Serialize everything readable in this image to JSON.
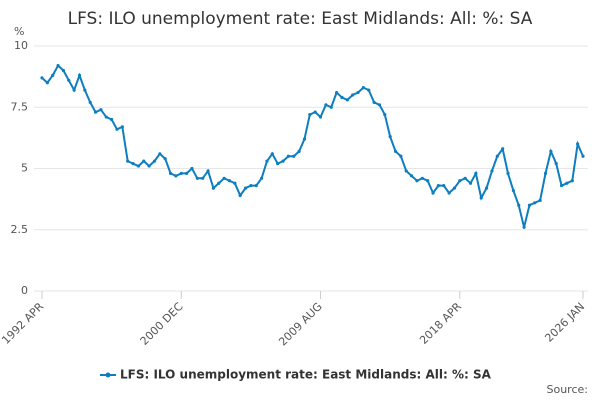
{
  "chart_data": {
    "type": "line",
    "title": "LFS: ILO unemployment rate: East Midlands: All: %: SA",
    "y_label": "%",
    "source": "Source:",
    "categories": [
      "1992 APR",
      null,
      null,
      null,
      null,
      null,
      null,
      null,
      null,
      null,
      null,
      null,
      null,
      null,
      null,
      null,
      null,
      null,
      null,
      null,
      null,
      null,
      null,
      null,
      null,
      null,
      "2000 DEC",
      null,
      null,
      null,
      null,
      null,
      null,
      null,
      null,
      null,
      null,
      null,
      null,
      null,
      null,
      null,
      null,
      null,
      null,
      null,
      null,
      null,
      null,
      null,
      null,
      null,
      "2009 AUG",
      null,
      null,
      null,
      null,
      null,
      null,
      null,
      null,
      null,
      null,
      null,
      null,
      null,
      null,
      null,
      null,
      null,
      null,
      null,
      null,
      null,
      null,
      null,
      null,
      null,
      "2018 APR",
      null,
      null,
      null,
      null,
      null,
      null,
      null,
      null,
      null,
      null,
      null,
      null,
      null,
      null,
      null,
      null,
      null,
      null,
      null,
      null,
      null,
      null,
      "2026 JAN"
    ],
    "series": [
      {
        "name": "LFS: ILO unemployment rate: East Midlands: All: %: SA",
        "color": "#0e7ec0",
        "values": [
          8.7,
          8.5,
          8.8,
          9.2,
          9.0,
          8.6,
          8.2,
          8.8,
          8.2,
          7.7,
          7.3,
          7.4,
          7.1,
          7.0,
          6.6,
          6.7,
          5.3,
          5.2,
          5.1,
          5.3,
          5.1,
          5.3,
          5.6,
          5.4,
          4.8,
          4.7,
          4.8,
          4.8,
          5.0,
          4.6,
          4.6,
          4.9,
          4.2,
          4.4,
          4.6,
          4.5,
          4.4,
          3.9,
          4.2,
          4.3,
          4.3,
          4.6,
          5.3,
          5.6,
          5.2,
          5.3,
          5.5,
          5.5,
          5.7,
          6.2,
          7.2,
          7.3,
          7.1,
          7.6,
          7.5,
          8.1,
          7.9,
          7.8,
          8.0,
          8.1,
          8.3,
          8.2,
          7.7,
          7.6,
          7.2,
          6.3,
          5.7,
          5.5,
          4.9,
          4.7,
          4.5,
          4.6,
          4.5,
          4.0,
          4.3,
          4.3,
          4.0,
          4.2,
          4.5,
          4.6,
          4.4,
          4.8,
          3.8,
          4.2,
          4.9,
          5.5,
          5.8,
          4.8,
          4.1,
          3.5,
          2.6,
          3.5,
          3.6,
          3.7,
          4.8,
          5.7,
          5.2,
          4.3,
          4.4,
          4.5,
          6.0,
          5.5
        ]
      }
    ],
    "ylim": [
      0,
      10
    ],
    "yticks": [
      0,
      2.5,
      5,
      7.5,
      10
    ],
    "grid": true
  }
}
